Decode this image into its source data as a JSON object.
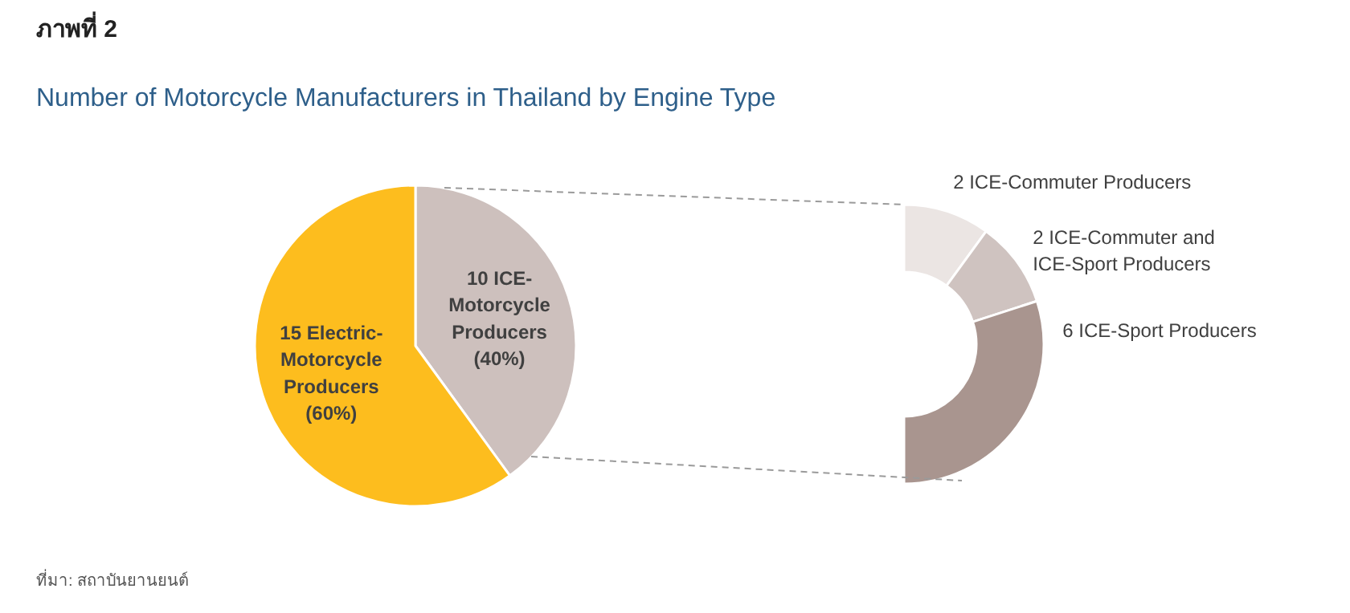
{
  "chart_data": [
    {
      "type": "pie",
      "title": "ภาพที่ 2",
      "subtitle": "Number of Motorcycle Manufacturers in Thailand by Engine Type",
      "categories": [
        "10 ICE-\nMotorcycle\nProducers\n(40%)",
        "15 Electric-\nMotorcycle\nProducers\n(60%)"
      ],
      "values": [
        10,
        15
      ],
      "colors": [
        "#cdc0bd",
        "#fdbd1e"
      ],
      "annotations": [
        "ที่มา: สถาบันยานยนต์"
      ]
    },
    {
      "type": "donut",
      "categories": [
        "2 ICE-Commuter Producers",
        "2 ICE-Commuter and\nICE-Sport Producers",
        "6 ICE-Sport Producers"
      ],
      "values": [
        2,
        2,
        6
      ],
      "colors": [
        "#ebe5e3",
        "#cfc3c0",
        "#a9958f"
      ]
    }
  ]
}
